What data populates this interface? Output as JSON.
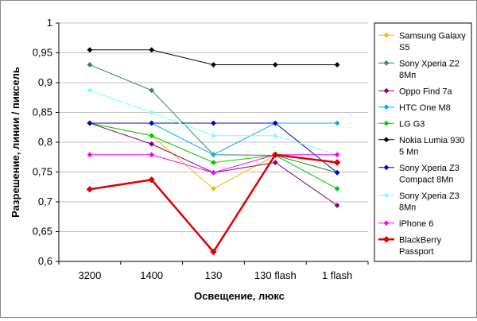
{
  "chart_data": {
    "type": "line",
    "categories": [
      "3200",
      "1400",
      "130",
      "130 flash",
      "1 flash"
    ],
    "xlabel": "Освещение, люкс",
    "ylabel": "Разрешение, линии / пиксель",
    "ylim": [
      0.6,
      1.0
    ],
    "y_ticks": [
      "0,6",
      "0,65",
      "0,7",
      "0,75",
      "0,8",
      "0,85",
      "0,9",
      "0,95",
      "1"
    ],
    "grid": "horizontal",
    "legend_position": "right",
    "series": [
      {
        "name": "Samsung Galaxy S5",
        "legend_lines": [
          "Samsung Galaxy",
          "S5"
        ],
        "color": "#f5b800",
        "values": [
          0.832,
          0.811,
          0.722,
          0.778,
          0.749
        ]
      },
      {
        "name": "Sony Xperia Z2 8Мп",
        "legend_lines": [
          "Sony Xperia Z2",
          "8Мп"
        ],
        "color": "#2e8b57",
        "values": [
          0.93,
          0.887,
          0.779,
          0.778,
          0.749
        ]
      },
      {
        "name": "Oppo Find 7a",
        "legend_lines": [
          "Oppo Find 7a"
        ],
        "color": "#800080",
        "values": [
          0.832,
          0.797,
          0.749,
          0.766,
          0.694
        ]
      },
      {
        "name": "HTC One M8",
        "legend_lines": [
          "HTC One M8"
        ],
        "color": "#00b0f0",
        "values": [
          0.832,
          0.832,
          0.779,
          0.832,
          0.832
        ]
      },
      {
        "name": "LG G3",
        "legend_lines": [
          "LG G3"
        ],
        "color": "#00cc00",
        "values": [
          0.832,
          0.811,
          0.766,
          0.778,
          0.722
        ]
      },
      {
        "name": "Nokia Lumia 930 5 Мп",
        "legend_lines": [
          "Nokia Lumia 930",
          "5 Мп"
        ],
        "color": "#000000",
        "values": [
          0.955,
          0.955,
          0.93,
          0.93,
          0.93
        ]
      },
      {
        "name": "Sony Xperia Z3 Compact 8Мп",
        "legend_lines": [
          "Sony Xperia Z3",
          "Compact 8Мп"
        ],
        "color": "#0000cc",
        "values": [
          0.832,
          0.832,
          0.832,
          0.832,
          0.749
        ]
      },
      {
        "name": "Sony Xperia Z3 8Мп",
        "legend_lines": [
          "Sony Xperia Z3",
          "8Мп"
        ],
        "color": "#7fffff",
        "values": [
          0.887,
          0.85,
          0.811,
          0.811,
          0.779
        ]
      },
      {
        "name": "iPhone 6",
        "legend_lines": [
          "iPhone 6"
        ],
        "color": "#ff00ff",
        "values": [
          0.779,
          0.779,
          0.749,
          0.779,
          0.779
        ]
      },
      {
        "name": "BlackBerry Passport",
        "legend_lines": [
          "BlackBerry",
          "Passport"
        ],
        "color": "#e00000",
        "emphasis": true,
        "values": [
          0.721,
          0.737,
          0.616,
          0.779,
          0.766
        ]
      }
    ]
  }
}
